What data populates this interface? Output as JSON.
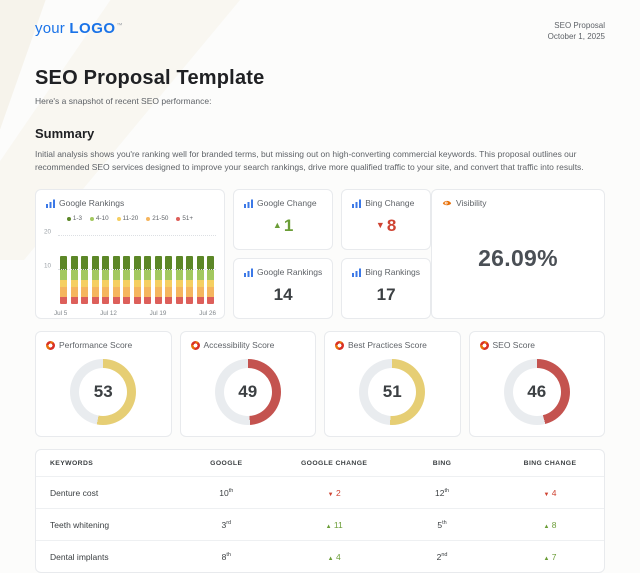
{
  "header": {
    "logo": {
      "prefix": "your",
      "brand": "LOGO",
      "tm": "™",
      "color": "#1a73e8"
    },
    "meta": {
      "line1": "SEO Proposal",
      "line2": "October 1, 2025"
    }
  },
  "page": {
    "title": "SEO Proposal Template",
    "subtitle": "Here's a snapshot of recent SEO performance:",
    "summary_heading": "Summary",
    "summary_text": "Initial analysis shows you're ranking well for branded terms, but missing out on high-converting commercial keywords. This proposal outlines our recommended SEO services designed to improve your search rankings, drive more qualified traffic to your site, and convert that traffic into results."
  },
  "chart_data": {
    "type": "bar",
    "stacked": true,
    "title": "Google Rankings",
    "n_bars": 15,
    "x_tick_labels": [
      "Jul 5",
      "Jul 12",
      "Jul 19",
      "Jul 26"
    ],
    "ylim": [
      0,
      23
    ],
    "yticks": [
      10,
      20
    ],
    "grid": "dotted horizontal",
    "legend_position": "top",
    "series": [
      {
        "name": "1-3",
        "color": "#5c8727",
        "values": [
          4,
          4,
          4,
          4,
          4,
          4,
          4,
          4,
          4,
          4,
          4,
          4,
          4,
          4,
          4
        ]
      },
      {
        "name": "4-10",
        "color": "#a3c85f",
        "values": [
          3,
          3,
          3,
          3,
          3,
          3,
          3,
          3,
          3,
          3,
          3,
          3,
          3,
          3,
          3
        ]
      },
      {
        "name": "11-20",
        "color": "#f5cf60",
        "values": [
          2,
          2,
          2,
          2,
          2,
          2,
          2,
          2,
          2,
          2,
          2,
          2,
          2,
          2,
          2
        ]
      },
      {
        "name": "21-50",
        "color": "#f5b55e",
        "values": [
          3,
          3,
          3,
          3,
          3,
          3,
          3,
          3,
          3,
          3,
          3,
          3,
          3,
          3,
          3
        ]
      },
      {
        "name": "51+",
        "color": "#dd5f5a",
        "values": [
          2,
          2,
          2,
          2,
          2,
          2,
          2,
          2,
          2,
          2,
          2,
          2,
          2,
          2,
          2
        ]
      }
    ]
  },
  "stats": {
    "google_change": {
      "title": "Google Change",
      "value": "1",
      "direction": "up"
    },
    "bing_change": {
      "title": "Bing Change",
      "value": "8",
      "direction": "down"
    },
    "google_rankings": {
      "title": "Google Rankings",
      "value": "14"
    },
    "bing_rankings": {
      "title": "Bing Rankings",
      "value": "17"
    },
    "visibility": {
      "title": "Visibility",
      "value": "26.09%"
    }
  },
  "colors": {
    "up_green": "#6b9d37",
    "down_red": "#cf4332",
    "gauge_track": "#e9ecef",
    "gauge_yellow": "#e6ce74",
    "gauge_red": "#c4534f",
    "accent_blue": "#1a73e8"
  },
  "gauges": [
    {
      "title": "Performance Score",
      "value": 53,
      "color": "#e6ce74"
    },
    {
      "title": "Accessibility Score",
      "value": 49,
      "color": "#c4534f"
    },
    {
      "title": "Best Practices Score",
      "value": 51,
      "color": "#e6ce74"
    },
    {
      "title": "SEO Score",
      "value": 46,
      "color": "#c4534f"
    }
  ],
  "table": {
    "headers": [
      "Keywords",
      "Google",
      "Google Change",
      "Bing",
      "Bing Change"
    ],
    "rows": [
      {
        "keyword": "Denture cost",
        "google": "10",
        "google_ord": "th",
        "google_change": {
          "value": "2",
          "direction": "down"
        },
        "bing": "12",
        "bing_ord": "th",
        "bing_change": {
          "value": "4",
          "direction": "down"
        }
      },
      {
        "keyword": "Teeth whitening",
        "google": "3",
        "google_ord": "rd",
        "google_change": {
          "value": "11",
          "direction": "up"
        },
        "bing": "5",
        "bing_ord": "th",
        "bing_change": {
          "value": "8",
          "direction": "up"
        }
      },
      {
        "keyword": "Dental implants",
        "google": "8",
        "google_ord": "th",
        "google_change": {
          "value": "4",
          "direction": "up"
        },
        "bing": "2",
        "bing_ord": "nd",
        "bing_change": {
          "value": "7",
          "direction": "up"
        }
      }
    ]
  }
}
